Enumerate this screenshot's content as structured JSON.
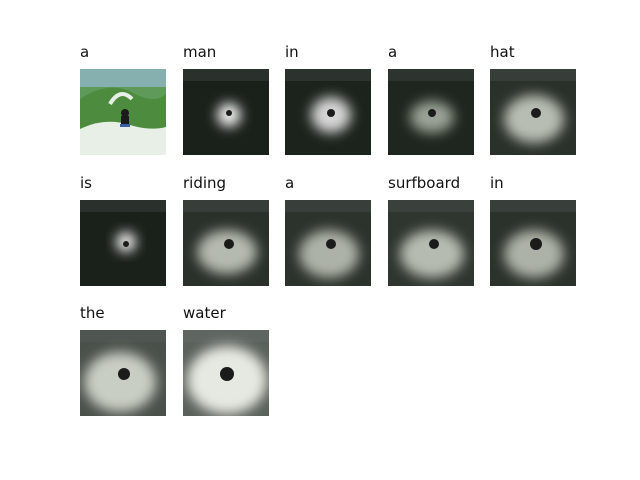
{
  "caption_words": [
    "a",
    "man",
    "in",
    "a",
    "hat",
    "is",
    "riding",
    "a",
    "surfboard",
    "in",
    "the",
    "water"
  ],
  "colors": {
    "background": "#ffffff",
    "text": "#111111",
    "dark_frame": "#1c231c",
    "highlight": "#f2f2f2",
    "wave_green": "#6fa24a",
    "foam": "#e8efe6"
  },
  "images": {
    "original_description": "surfer",
    "attention_maps_count": 11
  }
}
